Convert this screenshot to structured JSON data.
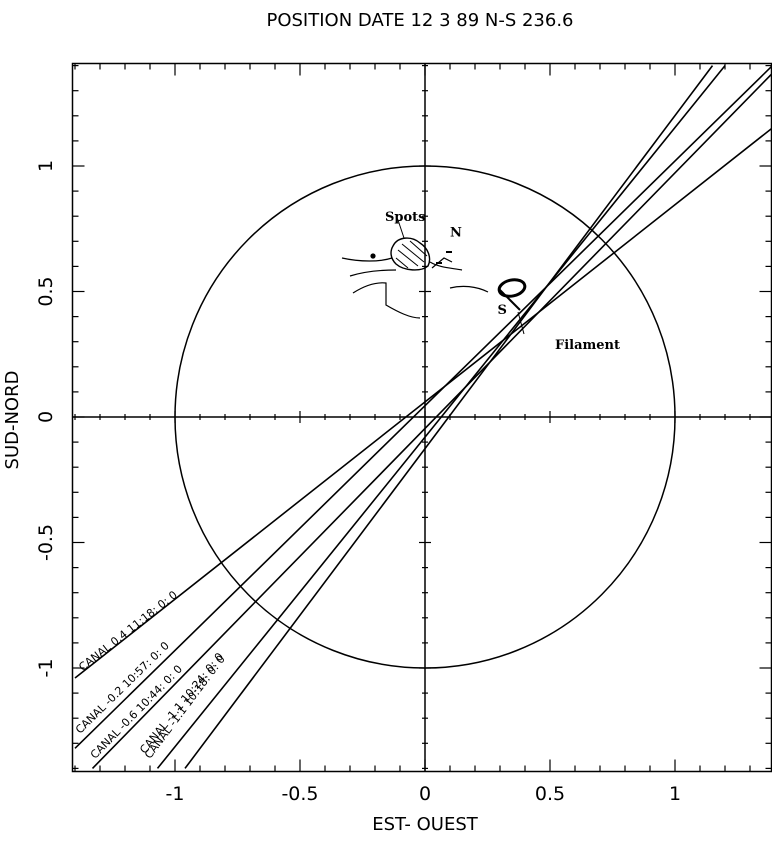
{
  "chart_data": {
    "type": "scatter",
    "title": "POSITION DATE  12  3 89  N-S 236.6",
    "xlabel": "EST- OUEST",
    "ylabel": "SUD-NORD",
    "xlim": [
      -1.4,
      1.4
    ],
    "ylim": [
      -1.4,
      1.4
    ],
    "grid": false,
    "x_ticks": [
      -1,
      -0.5,
      0,
      0.5,
      1
    ],
    "x_tick_labels": [
      "-1",
      "-0.5",
      "0",
      "0.5",
      "1"
    ],
    "y_ticks": [
      -1,
      -0.5,
      0,
      0.5,
      1
    ],
    "y_tick_labels": [
      "-1",
      "-0.5",
      "0",
      "0.5",
      "1"
    ],
    "solar_disk": {
      "center": [
        0,
        0
      ],
      "radius": 1
    },
    "series": [
      {
        "name": "CANAL  0.4 11:18: 0: 0",
        "points": [
          [
            -1.4,
            -1.04
          ],
          [
            1.4,
            1.16
          ]
        ]
      },
      {
        "name": "CANAL  -0.2 10:57: 0: 0",
        "points": [
          [
            -1.4,
            -1.32
          ],
          [
            1.4,
            1.41
          ]
        ]
      },
      {
        "name": "CANAL  -0.6 10:44: 0: 0",
        "points": [
          [
            -1.33,
            -1.4
          ],
          [
            1.4,
            1.38
          ]
        ]
      },
      {
        "name": "CANAL  -1.1 10:24: 0: 0",
        "points": [
          [
            -1.07,
            -1.4
          ],
          [
            1.2,
            1.4
          ]
        ]
      },
      {
        "name": "CANAL  -1.1 10:18: 0: 0",
        "points": [
          [
            -0.96,
            -1.4
          ],
          [
            1.15,
            1.4
          ]
        ]
      }
    ],
    "annotations": [
      {
        "text": "Spots",
        "x": -0.16,
        "y": 0.78
      },
      {
        "text": "N",
        "x": 0.1,
        "y": 0.72
      },
      {
        "text": "S",
        "x": 0.29,
        "y": 0.41
      },
      {
        "text": "Filament",
        "x": 0.52,
        "y": 0.27
      }
    ]
  }
}
